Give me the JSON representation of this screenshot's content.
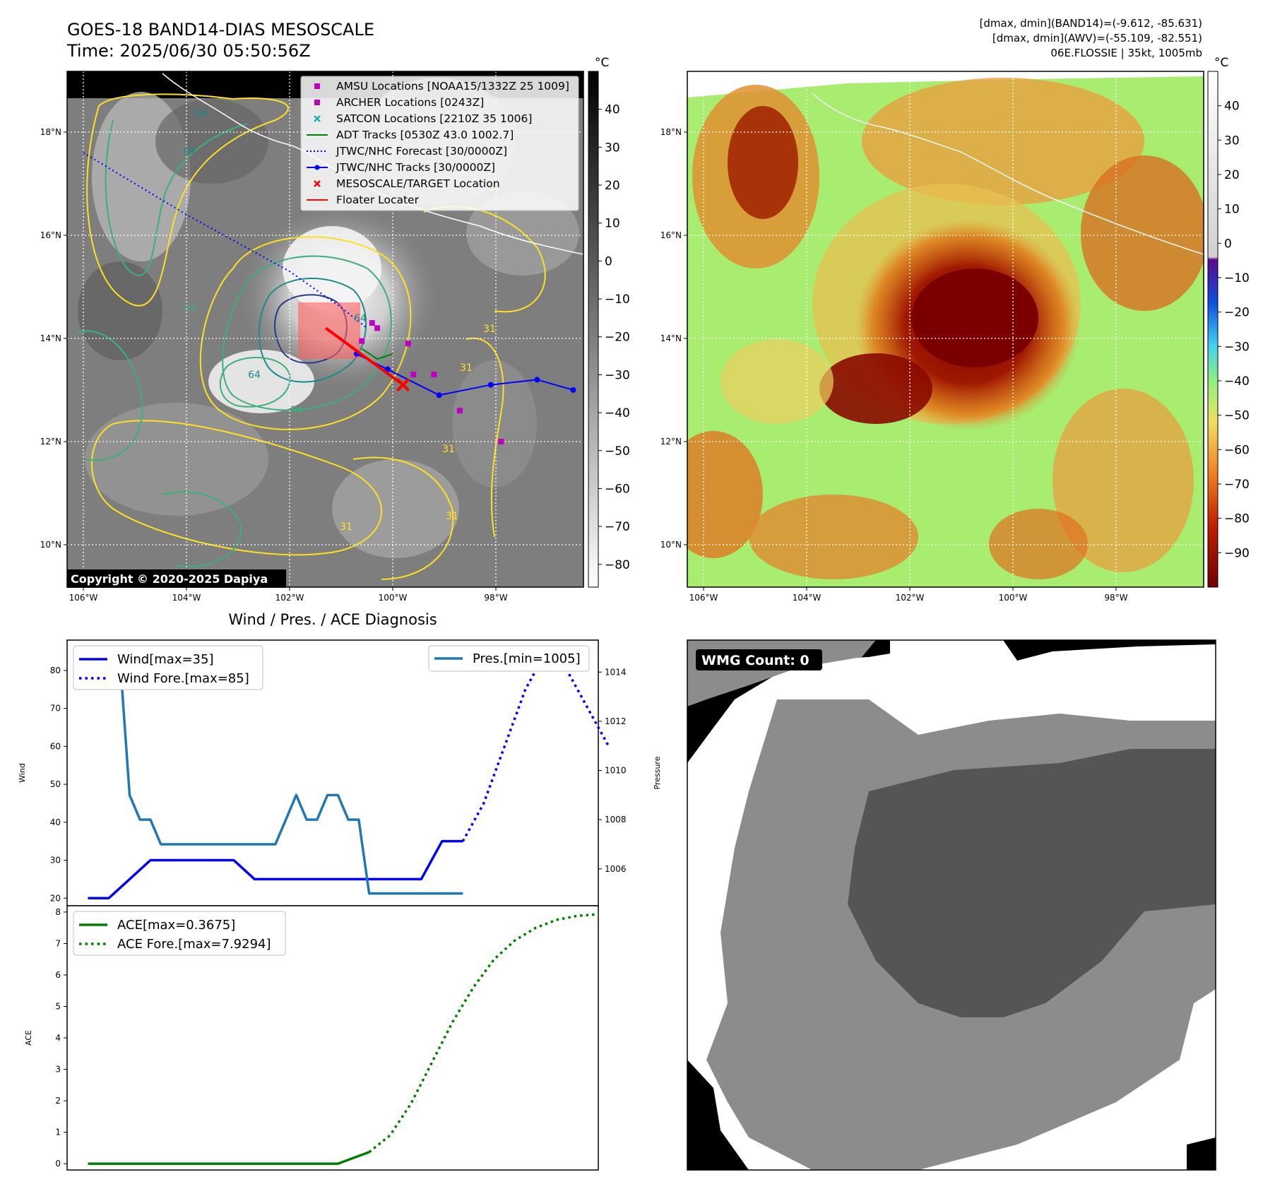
{
  "header": {
    "title_line1": "GOES-18 BAND14-DIAS MESOSCALE",
    "title_line2": "Time: 2025/06/30 05:50:56Z",
    "info_line1": "[dmax, dmin](BAND14)=(-9.612, -85.631)",
    "info_line2": "[dmax, dmin](AWV)=(-55.109, -82.551)",
    "info_line3": "06E.FLOSSIE | 35kt, 1005mb"
  },
  "maps": {
    "lat_ticks": [
      "18°N",
      "16°N",
      "14°N",
      "12°N",
      "10°N"
    ],
    "lon_ticks": [
      "106°W",
      "104°W",
      "102°W",
      "100°W",
      "98°W"
    ],
    "copyright": "Copyright © 2020-2025 Dapiya",
    "unit": "°C",
    "gray_colorbar_ticks": [
      "40",
      "30",
      "20",
      "10",
      "0",
      "−10",
      "−20",
      "−30",
      "−40",
      "−50",
      "−60",
      "−70",
      "−80"
    ],
    "color_colorbar_ticks": [
      "40",
      "30",
      "20",
      "10",
      "0",
      "−10",
      "−20",
      "−30",
      "−40",
      "−50",
      "−60",
      "−70",
      "−80",
      "−90"
    ],
    "contour_labels": [
      "64",
      "64",
      "54",
      "31",
      "31",
      "31",
      "31",
      "31",
      "31",
      "54",
      "64",
      "64"
    ],
    "legend": [
      {
        "label": "AMSU Locations [NOAA15/1332Z 25 1009]",
        "color": "#c000c0",
        "icon": "square-marker-icon"
      },
      {
        "label": "ARCHER Locations [0243Z]",
        "color": "#c000c0",
        "icon": "square-marker-icon"
      },
      {
        "label": "SATCON Locations [2210Z 35 1006]",
        "color": "#20b0b0",
        "icon": "x-marker-icon"
      },
      {
        "label": "ADT Tracks [0530Z 43.0 1002.7]",
        "color": "#008000",
        "icon": "solid-line-icon"
      },
      {
        "label": "JTWC/NHC Forecast [30/0000Z]",
        "color": "#0000ff",
        "icon": "dotted-line-icon"
      },
      {
        "label": "JTWC/NHC Tracks [30/0000Z]",
        "color": "#0000ff",
        "icon": "line-dot-icon"
      },
      {
        "label": "MESOSCALE/TARGET Location",
        "color": "#ff0000",
        "icon": "x-marker-icon"
      },
      {
        "label": "Floater Locater",
        "color": "#ff0000",
        "icon": "solid-line-icon"
      }
    ]
  },
  "diagnosis": {
    "title": "Wind / Pres. / ACE Diagnosis",
    "wind_label": "Wind",
    "pressure_label": "Pressure",
    "ace_label": "ACE",
    "legend_wind": "Wind[max=35]",
    "legend_wind_fore": "Wind Fore.[max=85]",
    "legend_pres": "Pres.[min=1005]",
    "legend_ace": "ACE[max=0.3675]",
    "legend_ace_fore": "ACE Fore.[max=7.9294]"
  },
  "wmg": {
    "label": "WMG Count: 0"
  },
  "chart_data": [
    {
      "type": "line",
      "panel": "wind-pressure",
      "x": [
        0,
        1,
        2,
        3,
        4,
        5,
        6,
        7,
        8,
        9,
        10,
        11,
        12,
        13,
        14,
        15,
        16,
        17,
        18,
        19,
        20,
        21,
        22,
        23,
        24,
        25,
        26,
        27,
        28,
        29,
        30,
        31,
        32,
        33,
        34,
        35,
        36,
        37,
        38,
        39,
        40,
        41,
        42,
        43,
        44,
        45,
        46,
        47,
        48,
        49
      ],
      "series": [
        {
          "name": "Wind[max=35]",
          "axis": "left",
          "color": "#0000ff",
          "style": "solid",
          "x": [
            0,
            2,
            4,
            6,
            8,
            10,
            12,
            14,
            16,
            18,
            20,
            22,
            24,
            26,
            28,
            30,
            32,
            34,
            36
          ],
          "values": [
            20,
            20,
            25,
            30,
            30,
            30,
            30,
            30,
            25,
            25,
            25,
            25,
            25,
            25,
            25,
            25,
            25,
            35,
            35
          ]
        },
        {
          "name": "Wind Fore.[max=85]",
          "axis": "left",
          "color": "#0000ff",
          "style": "dotted",
          "x": [
            36,
            38,
            40,
            42,
            44,
            46,
            48,
            50
          ],
          "values": [
            35,
            45,
            60,
            75,
            85,
            80,
            70,
            60
          ]
        },
        {
          "name": "Pres.[min=1005]",
          "axis": "right",
          "color": "#1f77b4",
          "style": "solid",
          "x": [
            0,
            1,
            2,
            3,
            4,
            5,
            6,
            7,
            8,
            9,
            10,
            11,
            12,
            13,
            14,
            15,
            16,
            17,
            18,
            19,
            20,
            21,
            22,
            23,
            24,
            25,
            26,
            27,
            28,
            29,
            30,
            31,
            32,
            33,
            34,
            35,
            36
          ],
          "values": [
            1015,
            1015,
            1015,
            1015,
            1009,
            1008,
            1008,
            1007,
            1007,
            1007,
            1007,
            1007,
            1007,
            1007,
            1007,
            1007,
            1007,
            1007,
            1007,
            1008,
            1009,
            1008,
            1008,
            1009,
            1009,
            1008,
            1008,
            1005,
            1005,
            1005,
            1005,
            1005,
            1005,
            1005,
            1005,
            1005,
            1005
          ]
        }
      ],
      "left_ylim": [
        18,
        88
      ],
      "left_yticks": [
        20,
        30,
        40,
        50,
        60,
        70,
        80
      ],
      "right_ylim": [
        1004.5,
        1015.3
      ],
      "right_yticks": [
        1006,
        1008,
        1010,
        1012,
        1014
      ],
      "xlim": [
        -2,
        49
      ]
    },
    {
      "type": "line",
      "panel": "ace",
      "series": [
        {
          "name": "ACE[max=0.3675]",
          "color": "#008000",
          "style": "solid",
          "x": [
            0,
            24,
            27
          ],
          "values": [
            0,
            0,
            0.3675
          ]
        },
        {
          "name": "ACE Fore.[max=7.9294]",
          "color": "#008000",
          "style": "dotted",
          "x": [
            27,
            29,
            31,
            33,
            35,
            37,
            39,
            41,
            43,
            45,
            47,
            49
          ],
          "values": [
            0.3675,
            0.9,
            1.9,
            3.2,
            4.5,
            5.6,
            6.5,
            7.1,
            7.5,
            7.75,
            7.88,
            7.93
          ]
        }
      ],
      "ylim": [
        -0.2,
        8.2
      ],
      "yticks": [
        0,
        1,
        2,
        3,
        4,
        5,
        6,
        7,
        8
      ],
      "xlim": [
        -2,
        49
      ]
    },
    {
      "type": "line",
      "panel": "map-tracks",
      "series": [
        {
          "name": "JTWC/NHC Forecast [30/0000Z]",
          "lon": [
            -106,
            -104,
            -102,
            -101,
            -100.5
          ],
          "lat": [
            17.6,
            16.4,
            15.3,
            14.6,
            14.2
          ]
        },
        {
          "name": "JTWC/NHC Tracks [30/0000Z]",
          "lon": [
            -100.7,
            -100.1,
            -99.1,
            -98.1,
            -97.2,
            -96.5
          ],
          "lat": [
            13.7,
            13.4,
            12.9,
            13.1,
            13.2,
            13.0
          ]
        }
      ],
      "markers": {
        "amsu": [
          {
            "lon": -100.6,
            "lat": 13.95
          }
        ],
        "archer": [
          {
            "lon": -100.4,
            "lat": 14.3
          },
          {
            "lon": -100.3,
            "lat": 14.2
          },
          {
            "lon": -99.7,
            "lat": 13.9
          },
          {
            "lon": -99.6,
            "lat": 13.3
          },
          {
            "lon": -99.2,
            "lat": 13.3
          },
          {
            "lon": -98.7,
            "lat": 12.6
          },
          {
            "lon": -97.9,
            "lat": 12.0
          }
        ],
        "mesoscale_target": [
          {
            "lon": -99.8,
            "lat": 13.1
          }
        ]
      }
    }
  ]
}
